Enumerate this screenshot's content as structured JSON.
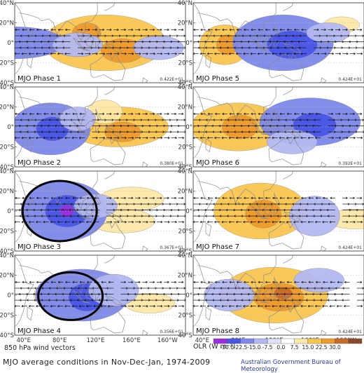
{
  "title": "MJO average conditions in Nov-Dec-Jan, 1974-2009",
  "credit": "Australian Government Bureau of Meteorology",
  "wind_caption": "850 hPa wind vectors",
  "olr_caption": "OLR (W m⁻²)",
  "lat_labels": [
    "40°N",
    "20°N",
    "0°",
    "20°S",
    "40°S"
  ],
  "lon_labels": [
    "40°E",
    "80°E",
    "120°E",
    "160°E",
    "160°W"
  ],
  "colorbar": {
    "ticks": [
      "-30.0",
      "-22.5",
      "-15.0",
      "-7.5",
      "0.0",
      "7.5",
      "15.0",
      "22.5",
      "30.0"
    ],
    "colors": [
      "#9b2fe0",
      "#4a56e6",
      "#7d88ea",
      "#b4b9f2",
      "#dfe1fa",
      "#ffffff",
      "#fde8a8",
      "#f9c64e",
      "#ee9a2c",
      "#c86a2a",
      "#8a4a2a"
    ]
  },
  "phases": [
    {
      "label": "MJO Phase 1",
      "scale": "0.422E+01",
      "col": 0,
      "row": 0,
      "circled": false,
      "neg": [
        {
          "lon": 30,
          "lat": 0,
          "rx": 28,
          "ry": 8,
          "lvl": 2
        },
        {
          "lon": 100,
          "lat": -2,
          "rx": 14,
          "ry": 6,
          "lvl": 1
        },
        {
          "lon": 190,
          "lat": -5,
          "rx": 14,
          "ry": 6,
          "lvl": 1
        }
      ],
      "pos": [
        {
          "lon": 130,
          "lat": 0,
          "rx": 34,
          "ry": 14,
          "lvl": 2
        },
        {
          "lon": 110,
          "lat": 10,
          "rx": 8,
          "ry": 5,
          "lvl": 3
        },
        {
          "lon": 150,
          "lat": -8,
          "rx": 12,
          "ry": 6,
          "lvl": 3
        }
      ]
    },
    {
      "label": "MJO Phase 2",
      "scale": "0.380E+01",
      "col": 0,
      "row": 1,
      "circled": false,
      "neg": [
        {
          "lon": 70,
          "lat": -2,
          "rx": 22,
          "ry": 13,
          "lvl": 2
        },
        {
          "lon": 72,
          "lat": -2,
          "rx": 9,
          "ry": 6,
          "lvl": 3
        },
        {
          "lon": 100,
          "lat": 8,
          "rx": 10,
          "ry": 6,
          "lvl": 1
        }
      ],
      "pos": [
        {
          "lon": 145,
          "lat": 0,
          "rx": 28,
          "ry": 10,
          "lvl": 2
        },
        {
          "lon": 150,
          "lat": -5,
          "rx": 10,
          "ry": 5,
          "lvl": 3
        },
        {
          "lon": 130,
          "lat": 15,
          "rx": 10,
          "ry": 6,
          "lvl": 1
        }
      ]
    },
    {
      "label": "MJO Phase 3",
      "scale": "0.367E+01",
      "col": 0,
      "row": 2,
      "circled": true,
      "neg": [
        {
          "lon": 85,
          "lat": 0,
          "rx": 24,
          "ry": 15,
          "lvl": 2
        },
        {
          "lon": 88,
          "lat": 0,
          "rx": 12,
          "ry": 8,
          "lvl": 3
        },
        {
          "lon": 88,
          "lat": 0,
          "rx": 4,
          "ry": 3,
          "lvl": 4
        },
        {
          "lon": 120,
          "lat": 5,
          "rx": 12,
          "ry": 6,
          "lvl": 1
        }
      ],
      "pos": [
        {
          "lon": 160,
          "lat": 12,
          "rx": 18,
          "ry": 6,
          "lvl": 1
        },
        {
          "lon": 150,
          "lat": -10,
          "rx": 18,
          "ry": 6,
          "lvl": 1
        }
      ]
    },
    {
      "label": "MJO Phase 4",
      "scale": "0.356E+01",
      "col": 0,
      "row": 3,
      "circled": true,
      "neg": [
        {
          "lon": 105,
          "lat": 0,
          "rx": 26,
          "ry": 13,
          "lvl": 2
        },
        {
          "lon": 110,
          "lat": -2,
          "rx": 10,
          "ry": 7,
          "lvl": 3
        },
        {
          "lon": 140,
          "lat": 5,
          "rx": 14,
          "ry": 8,
          "lvl": 1
        }
      ],
      "pos": [
        {
          "lon": 75,
          "lat": 0,
          "rx": 12,
          "ry": 6,
          "lvl": 1
        },
        {
          "lon": 180,
          "lat": -8,
          "rx": 14,
          "ry": 5,
          "lvl": 1
        }
      ]
    },
    {
      "label": "MJO Phase 5",
      "scale": "0.424E+01",
      "col": 1,
      "row": 0,
      "circled": false,
      "neg": [
        {
          "lon": 130,
          "lat": 0,
          "rx": 28,
          "ry": 14,
          "lvl": 2
        },
        {
          "lon": 140,
          "lat": -2,
          "rx": 14,
          "ry": 7,
          "lvl": 3
        },
        {
          "lon": 180,
          "lat": 10,
          "rx": 12,
          "ry": 5,
          "lvl": 1
        }
      ],
      "pos": [
        {
          "lon": 65,
          "lat": -2,
          "rx": 14,
          "ry": 10,
          "lvl": 2
        },
        {
          "lon": 68,
          "lat": -2,
          "rx": 6,
          "ry": 5,
          "lvl": 3
        },
        {
          "lon": 195,
          "lat": 18,
          "rx": 10,
          "ry": 4,
          "lvl": 1
        }
      ]
    },
    {
      "label": "MJO Phase 6",
      "scale": "0.392E+01",
      "col": 1,
      "row": 1,
      "circled": false,
      "neg": [
        {
          "lon": 160,
          "lat": 5,
          "rx": 28,
          "ry": 12,
          "lvl": 2
        },
        {
          "lon": 165,
          "lat": 2,
          "rx": 12,
          "ry": 6,
          "lvl": 3
        },
        {
          "lon": 140,
          "lat": -15,
          "rx": 14,
          "ry": 6,
          "lvl": 1
        }
      ],
      "pos": [
        {
          "lon": 80,
          "lat": 0,
          "rx": 26,
          "ry": 12,
          "lvl": 2
        },
        {
          "lon": 82,
          "lat": 0,
          "rx": 10,
          "ry": 6,
          "lvl": 3
        }
      ]
    },
    {
      "label": "MJO Phase 7",
      "scale": "0.424E+01",
      "col": 1,
      "row": 2,
      "circled": false,
      "neg": [
        {
          "lon": 165,
          "lat": -5,
          "rx": 14,
          "ry": 10,
          "lvl": 1
        }
      ],
      "pos": [
        {
          "lon": 105,
          "lat": 0,
          "rx": 26,
          "ry": 14,
          "lvl": 2
        },
        {
          "lon": 108,
          "lat": -3,
          "rx": 10,
          "ry": 7,
          "lvl": 3
        },
        {
          "lon": 210,
          "lat": -8,
          "rx": 16,
          "ry": 5,
          "lvl": 1
        }
      ]
    },
    {
      "label": "MJO Phase 8",
      "scale": "0.424E+01",
      "col": 1,
      "row": 3,
      "circled": false,
      "neg": [
        {
          "lon": 70,
          "lat": 0,
          "rx": 14,
          "ry": 8,
          "lvl": 1
        },
        {
          "lon": 170,
          "lat": 15,
          "rx": 14,
          "ry": 6,
          "lvl": 1
        }
      ],
      "pos": [
        {
          "lon": 120,
          "lat": 0,
          "rx": 30,
          "ry": 14,
          "lvl": 2
        },
        {
          "lon": 125,
          "lat": -2,
          "rx": 14,
          "ry": 7,
          "lvl": 3
        },
        {
          "lon": 130,
          "lat": 2,
          "rx": 5,
          "ry": 3,
          "lvl": 4
        }
      ]
    }
  ]
}
